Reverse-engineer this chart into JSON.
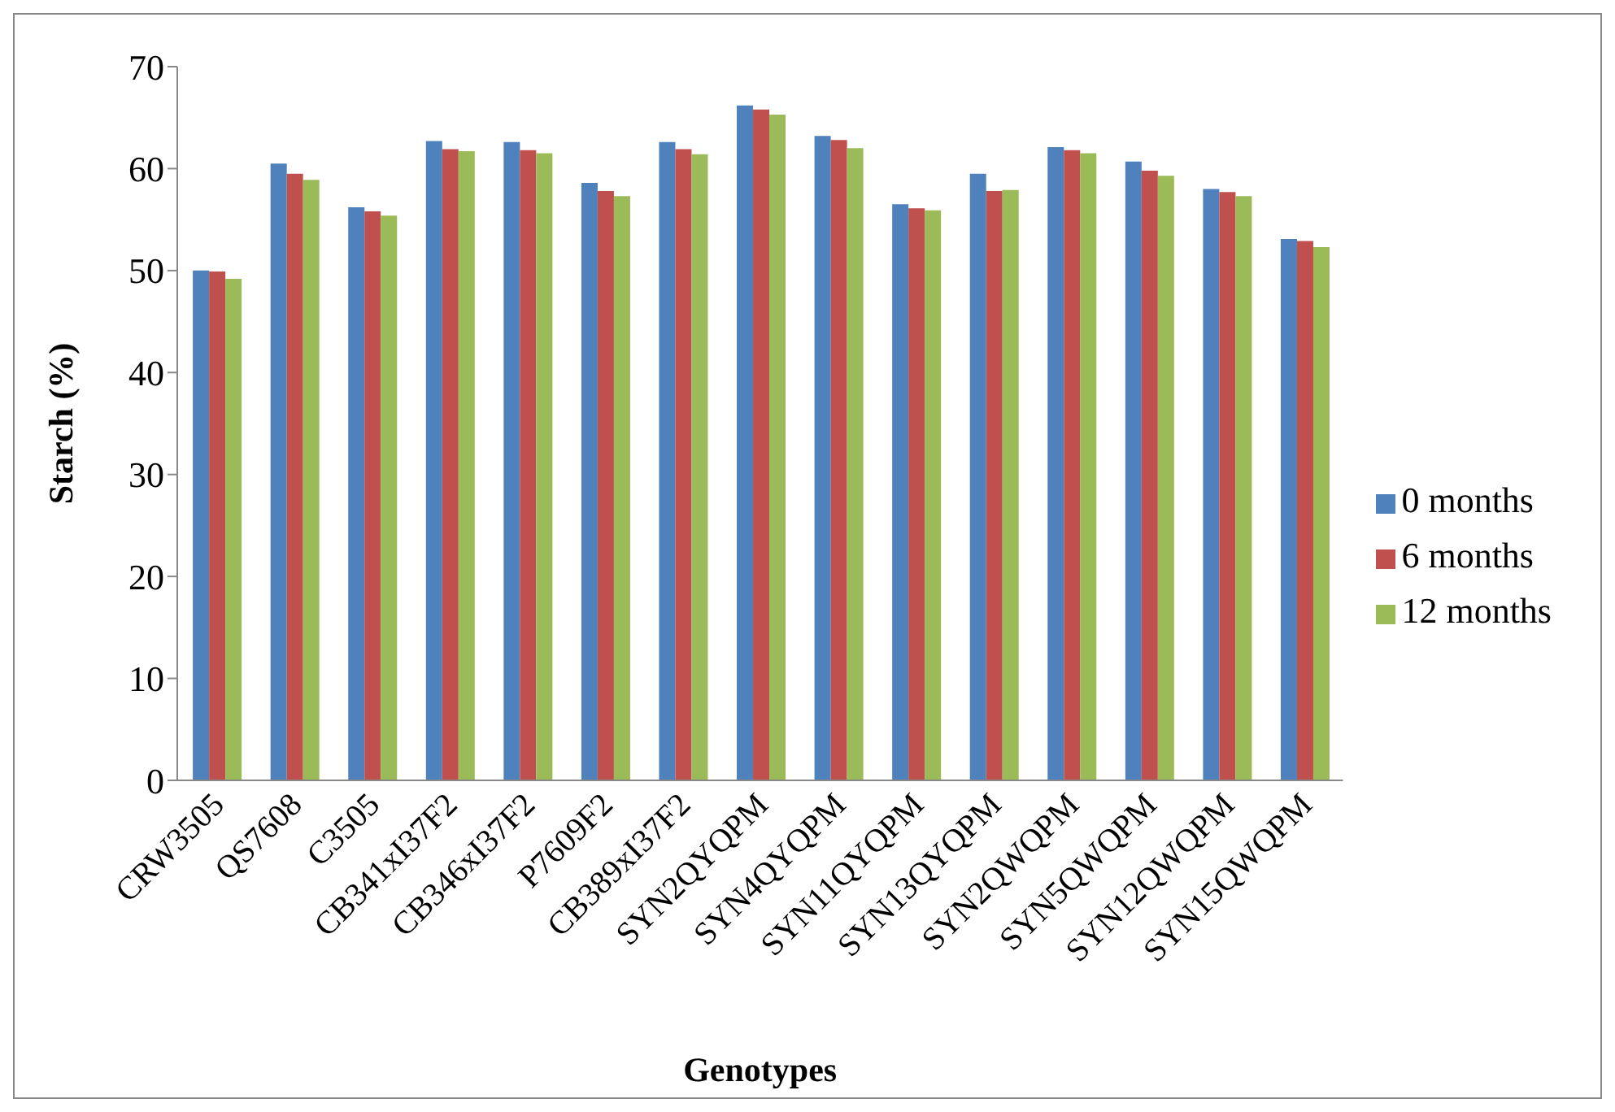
{
  "chart_data": {
    "type": "bar",
    "xlabel": "Genotypes",
    "ylabel": "Starch (%)",
    "categories": [
      "CRW3505",
      "QS7608",
      "C3505",
      "CB341xI37F2",
      "CB346xI37F2",
      "P7609F2",
      "CB389xI37F2",
      "SYN2QYQPM",
      "SYN4QYQPM",
      "SYN11QYQPM",
      "SYN13QYQPM",
      "SYN2QWQPM",
      "SYN5QWQPM",
      "SYN12QWQPM",
      "SYN15QWQPM"
    ],
    "series": [
      {
        "name": "0 months",
        "color": "#4f81bd",
        "values": [
          50.0,
          60.5,
          56.2,
          62.7,
          62.6,
          58.6,
          62.6,
          66.2,
          63.2,
          56.5,
          59.5,
          62.1,
          60.7,
          58.0,
          53.1
        ]
      },
      {
        "name": "6 months",
        "color": "#c0504d",
        "values": [
          49.9,
          59.5,
          55.8,
          61.9,
          61.8,
          57.8,
          61.9,
          65.8,
          62.8,
          56.1,
          57.8,
          61.8,
          59.8,
          57.7,
          52.9
        ]
      },
      {
        "name": "12 months",
        "color": "#9bbb59",
        "values": [
          49.2,
          58.9,
          55.4,
          61.7,
          61.5,
          57.3,
          61.4,
          65.3,
          62.0,
          55.9,
          57.9,
          61.5,
          59.3,
          57.3,
          52.3
        ]
      }
    ],
    "ylim": [
      0,
      70
    ],
    "yticks": [
      0,
      10,
      20,
      30,
      40,
      50,
      60,
      70
    ],
    "grid": false,
    "legend": "right"
  }
}
